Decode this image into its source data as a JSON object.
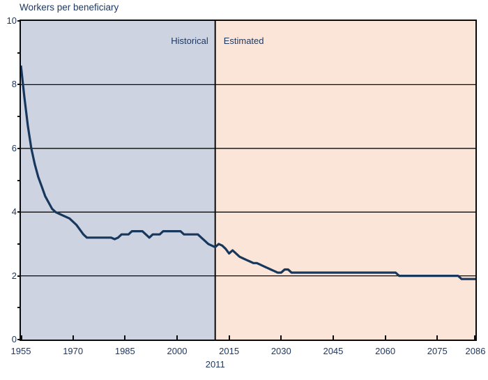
{
  "title": "Workers per beneficiary",
  "divider_label": "2011",
  "colors": {
    "background": "#ffffff",
    "historical_bg": "#cdd3e1",
    "estimated_bg": "#fbe5d8",
    "line": "#17375d",
    "text": "#1f3860",
    "grid": "#0a0a0a"
  },
  "chart_data": {
    "type": "line",
    "title": "Workers per beneficiary",
    "xlabel": "",
    "ylabel": "Workers per beneficiary",
    "xlim": [
      1955,
      2086
    ],
    "ylim": [
      0,
      10
    ],
    "x_ticks": [
      1955,
      1970,
      1985,
      2000,
      2015,
      2030,
      2045,
      2060,
      2075,
      2086
    ],
    "y_ticks": [
      0,
      2,
      4,
      6,
      8,
      10
    ],
    "y_tick_marks": [
      0,
      1,
      2,
      3,
      4,
      5,
      6,
      7,
      8,
      9,
      10
    ],
    "gridlines_y": [
      2,
      4,
      6,
      8
    ],
    "grid": true,
    "legend_position": "none",
    "divider_year": 2011,
    "regions": [
      {
        "label": "Historical",
        "from": 1955,
        "to": 2011,
        "color": "#cdd3e1"
      },
      {
        "label": "Estimated",
        "from": 2011,
        "to": 2086,
        "color": "#fbe5d8"
      }
    ],
    "series": [
      {
        "name": "Workers per beneficiary",
        "color": "#17375d",
        "points": [
          [
            1955,
            8.6
          ],
          [
            1956,
            7.6
          ],
          [
            1957,
            6.7
          ],
          [
            1958,
            6.0
          ],
          [
            1959,
            5.5
          ],
          [
            1960,
            5.1
          ],
          [
            1961,
            4.8
          ],
          [
            1962,
            4.5
          ],
          [
            1963,
            4.3
          ],
          [
            1964,
            4.1
          ],
          [
            1965,
            4.0
          ],
          [
            1966,
            3.95
          ],
          [
            1967,
            3.9
          ],
          [
            1968,
            3.85
          ],
          [
            1969,
            3.8
          ],
          [
            1970,
            3.7
          ],
          [
            1971,
            3.6
          ],
          [
            1972,
            3.45
          ],
          [
            1973,
            3.3
          ],
          [
            1974,
            3.2
          ],
          [
            1975,
            3.2
          ],
          [
            1976,
            3.2
          ],
          [
            1977,
            3.2
          ],
          [
            1978,
            3.2
          ],
          [
            1979,
            3.2
          ],
          [
            1980,
            3.2
          ],
          [
            1981,
            3.2
          ],
          [
            1982,
            3.15
          ],
          [
            1983,
            3.2
          ],
          [
            1984,
            3.3
          ],
          [
            1985,
            3.3
          ],
          [
            1986,
            3.3
          ],
          [
            1987,
            3.4
          ],
          [
            1988,
            3.4
          ],
          [
            1989,
            3.4
          ],
          [
            1990,
            3.4
          ],
          [
            1991,
            3.3
          ],
          [
            1992,
            3.2
          ],
          [
            1993,
            3.3
          ],
          [
            1994,
            3.3
          ],
          [
            1995,
            3.3
          ],
          [
            1996,
            3.4
          ],
          [
            1997,
            3.4
          ],
          [
            1998,
            3.4
          ],
          [
            1999,
            3.4
          ],
          [
            2000,
            3.4
          ],
          [
            2001,
            3.4
          ],
          [
            2002,
            3.3
          ],
          [
            2003,
            3.3
          ],
          [
            2004,
            3.3
          ],
          [
            2005,
            3.3
          ],
          [
            2006,
            3.3
          ],
          [
            2007,
            3.2
          ],
          [
            2008,
            3.1
          ],
          [
            2009,
            3.0
          ],
          [
            2010,
            2.95
          ],
          [
            2011,
            2.9
          ],
          [
            2012,
            3.0
          ],
          [
            2013,
            2.95
          ],
          [
            2014,
            2.85
          ],
          [
            2015,
            2.7
          ],
          [
            2016,
            2.8
          ],
          [
            2017,
            2.7
          ],
          [
            2018,
            2.6
          ],
          [
            2019,
            2.55
          ],
          [
            2020,
            2.5
          ],
          [
            2021,
            2.45
          ],
          [
            2022,
            2.4
          ],
          [
            2023,
            2.4
          ],
          [
            2024,
            2.35
          ],
          [
            2025,
            2.3
          ],
          [
            2026,
            2.25
          ],
          [
            2027,
            2.2
          ],
          [
            2028,
            2.15
          ],
          [
            2029,
            2.1
          ],
          [
            2030,
            2.1
          ],
          [
            2031,
            2.2
          ],
          [
            2032,
            2.2
          ],
          [
            2033,
            2.1
          ],
          [
            2034,
            2.1
          ],
          [
            2040,
            2.1
          ],
          [
            2050,
            2.1
          ],
          [
            2063,
            2.1
          ],
          [
            2064,
            2.0
          ],
          [
            2070,
            2.0
          ],
          [
            2081,
            2.0
          ],
          [
            2082,
            1.9
          ],
          [
            2086,
            1.9
          ]
        ]
      }
    ]
  }
}
